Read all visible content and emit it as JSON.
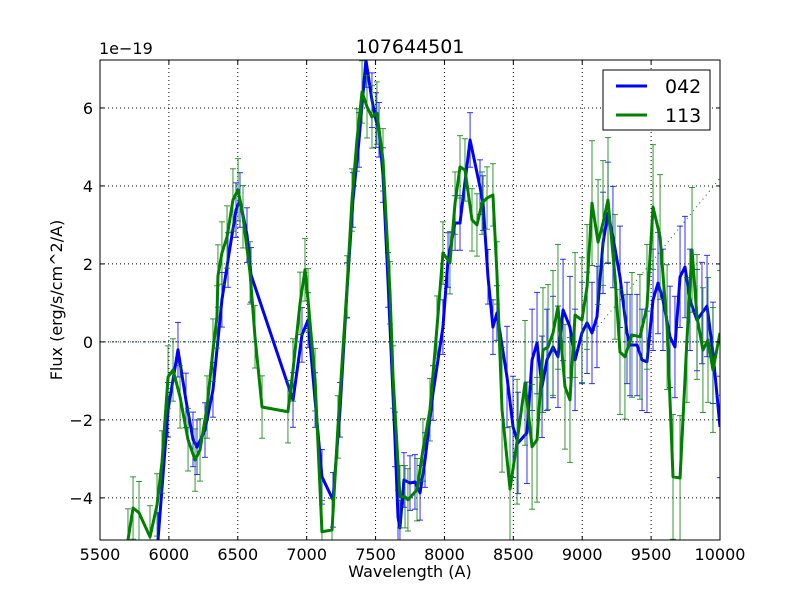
{
  "chart_data": {
    "type": "line",
    "title": "107644501",
    "xlabel": "Wavelength (A)",
    "ylabel": "Flux (erg/s/cm^2/A)",
    "y_offset_label": "1e−19",
    "y_scale": 1e-19,
    "xlim": [
      5500,
      10000
    ],
    "ylim": [
      -5.08,
      7.23
    ],
    "grid": true,
    "legend_position": "top-right",
    "x_ticks": [
      "5500",
      "6000",
      "6500",
      "7000",
      "7500",
      "8000",
      "8500",
      "9000",
      "9500",
      "10000"
    ],
    "y_ticks": [
      "−4",
      "−2",
      "0",
      "2",
      "4",
      "6"
    ],
    "series": [
      {
        "name": "042",
        "color": "#0000ff",
        "yerr": [
          {
            "from": 5500,
            "to": 8400,
            "err": 0.7
          },
          {
            "from": 8400,
            "to": 10000,
            "err": 1.3
          }
        ],
        "x": [
          5921,
          5994,
          6066,
          6124,
          6175,
          6204,
          6262,
          6320,
          6385,
          6429,
          6487,
          6516,
          6567,
          6596,
          6901,
          6966,
          7010,
          7061,
          7111,
          7191,
          7242,
          7293,
          7336,
          7380,
          7430,
          7474,
          7503,
          7525,
          7554,
          7590,
          7641,
          7663,
          7677,
          7706,
          7750,
          7786,
          7823,
          7859,
          7917,
          7989,
          8026,
          8077,
          8113,
          8186,
          8258,
          8280,
          8316,
          8352,
          8381,
          8454,
          8498,
          8534,
          8599,
          8636,
          8672,
          8708,
          8744,
          8788,
          8824,
          8861,
          8911,
          8948,
          8998,
          9035,
          9071,
          9107,
          9151,
          9187,
          9223,
          9274,
          9325,
          9347,
          9398,
          9434,
          9470,
          9514,
          9550,
          9586,
          9637,
          9673,
          9710,
          9746,
          9782,
          9833,
          9869,
          9906,
          9949,
          10000
        ],
        "y": [
          -5.08,
          -1.74,
          -0.2,
          -1.5,
          -2.5,
          -2.7,
          -2.26,
          -1.23,
          1.08,
          2.1,
          3.38,
          3.64,
          2.74,
          1.72,
          -1.49,
          0.18,
          0.56,
          -1.49,
          -3.46,
          -4.05,
          -1.74,
          1.33,
          3.64,
          5.18,
          7.23,
          6.2,
          5.69,
          5.44,
          4.28,
          1.59,
          -2.5,
          -4.5,
          -4.77,
          -3.54,
          -3.62,
          -3.59,
          -3.87,
          -3.03,
          -1.31,
          0.38,
          2.1,
          3.05,
          3.05,
          5.18,
          3.97,
          3.56,
          1.67,
          0.38,
          0.74,
          -0.9,
          -2.18,
          -2.59,
          -2.33,
          -0.46,
          -0.03,
          -1.15,
          -0.46,
          -0.13,
          -0.38,
          0.82,
          0.38,
          -0.46,
          0.23,
          0.49,
          0.23,
          0.64,
          2.54,
          3.31,
          2.69,
          1.67,
          0.23,
          -0.08,
          -0.08,
          -0.46,
          -0.51,
          1.08,
          1.51,
          1.08,
          0.13,
          -0.13,
          1.67,
          1.92,
          1.08,
          0.56,
          0.74,
          0.92,
          -0.28,
          -2.18
        ]
      },
      {
        "name": "113",
        "color": "#008000",
        "yerr": [
          {
            "from": 5500,
            "to": 8400,
            "err": 0.8
          },
          {
            "from": 8400,
            "to": 10000,
            "err": 1.6
          }
        ],
        "x": [
          5703,
          5740,
          5783,
          5863,
          5914,
          5950,
          5994,
          6030,
          6081,
          6139,
          6190,
          6226,
          6277,
          6320,
          6349,
          6356,
          6385,
          6422,
          6465,
          6502,
          6538,
          6589,
          6625,
          6676,
          6864,
          6901,
          6952,
          6988,
          7010,
          7061,
          7111,
          7184,
          7227,
          7293,
          7329,
          7365,
          7402,
          7438,
          7474,
          7510,
          7554,
          7605,
          7627,
          7677,
          7714,
          7735,
          7801,
          7844,
          7895,
          7946,
          7989,
          8040,
          8077,
          8113,
          8149,
          8200,
          8236,
          8273,
          8309,
          8352,
          8381,
          8418,
          8476,
          8527,
          8585,
          8636,
          8672,
          8715,
          8752,
          8788,
          8824,
          8875,
          8911,
          8948,
          8998,
          9035,
          9071,
          9115,
          9151,
          9187,
          9238,
          9274,
          9310,
          9361,
          9419,
          9470,
          9514,
          9565,
          9616,
          9659,
          9710,
          9760,
          9797,
          9833,
          9876,
          9913,
          9949,
          10000
        ],
        "y": [
          -5.08,
          -4.26,
          -4.38,
          -5.0,
          -4.18,
          -3.08,
          -0.9,
          -0.72,
          -1.41,
          -2.51,
          -3.03,
          -2.77,
          -1.67,
          -0.21,
          0.64,
          1.69,
          2.28,
          2.69,
          3.64,
          3.9,
          3.21,
          1.77,
          0.13,
          -1.67,
          -1.79,
          -0.72,
          0.99,
          1.85,
          1.08,
          -0.97,
          -4.87,
          -4.82,
          -2.18,
          1.41,
          3.64,
          5.18,
          6.41,
          6.03,
          5.77,
          5.87,
          4.67,
          1.26,
          -0.9,
          -3.97,
          -3.97,
          -4.05,
          -3.79,
          -2.77,
          -1.74,
          0.38,
          2.28,
          2.03,
          3.56,
          4.49,
          4.41,
          3.13,
          3.0,
          3.56,
          3.69,
          3.77,
          1.77,
          -1.74,
          -3.77,
          -2.56,
          -1.05,
          -2.69,
          -2.51,
          -0.21,
          -0.13,
          0.23,
          0.9,
          -1.15,
          -1.49,
          0.69,
          0.56,
          1.41,
          3.56,
          2.56,
          3.05,
          3.64,
          1.67,
          -0.26,
          -0.38,
          0.18,
          0.13,
          0.9,
          3.46,
          2.69,
          0.38,
          -3.46,
          -3.49,
          0.05,
          2.36,
          0.64,
          -0.21,
          0.05,
          -0.72,
          0.23
        ]
      }
    ],
    "reference_lines": [
      {
        "name": "zero-line",
        "color": "#008000",
        "x": [
          5500,
          10000
        ],
        "y": [
          0,
          0
        ]
      },
      {
        "name": "continuum-113",
        "color": "#008000",
        "x": [
          8950,
          9400,
          10000
        ],
        "y": [
          -0.3,
          1.6,
          4.2
        ]
      }
    ]
  }
}
